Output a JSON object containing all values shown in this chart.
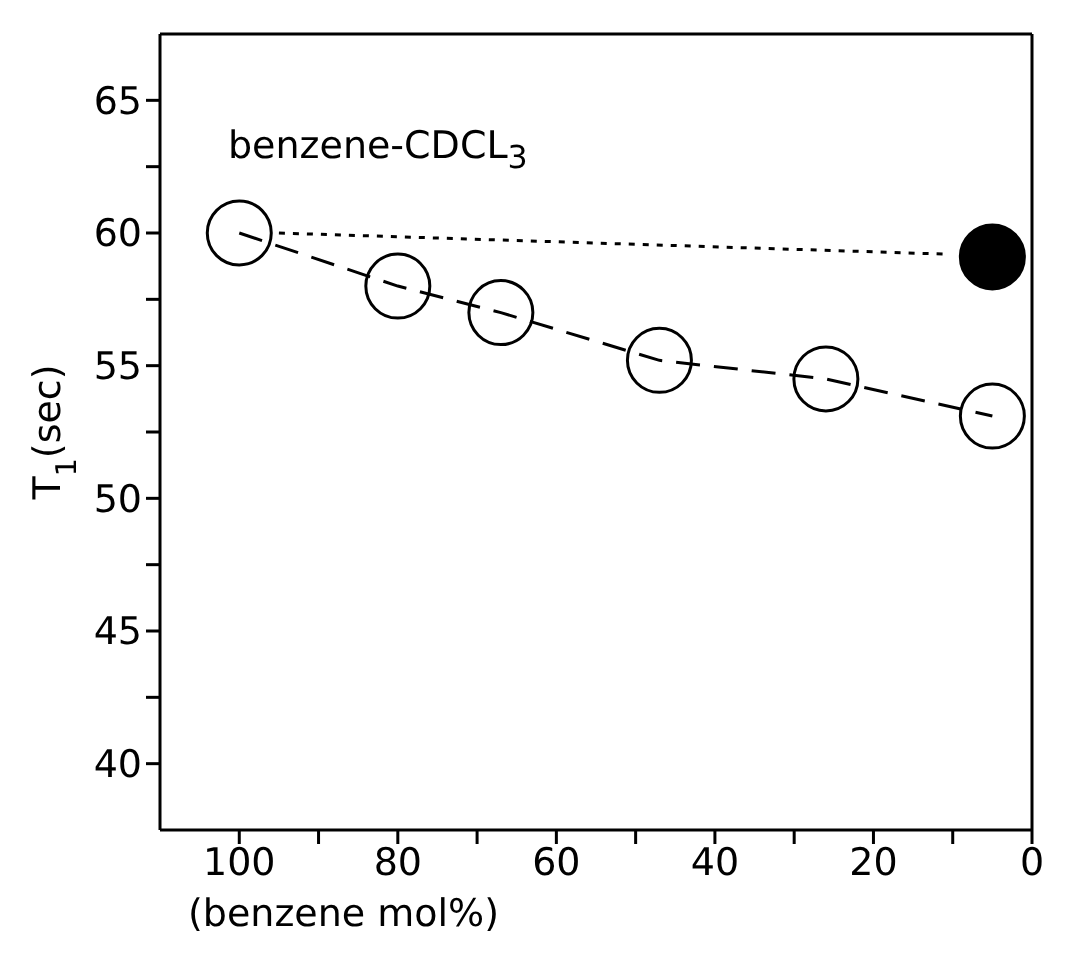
{
  "chart_data": {
    "type": "scatter",
    "xlabel": "(benzene mol%)",
    "ylabel": "T$_{1}$(sec)",
    "annotations": [
      "benzene-CDCL$_{3}$"
    ],
    "xlim": [
      110,
      0
    ],
    "xticks": [
      100,
      {
        "value": 90,
        "label": null
      },
      80,
      {
        "value": 70,
        "label": null
      },
      60,
      {
        "value": 50,
        "label": null
      },
      40,
      {
        "value": 30,
        "label": null
      },
      20,
      {
        "value": 10,
        "label": null
      },
      0
    ],
    "ylim": [
      37.5,
      67.5
    ],
    "yticks": [
      40,
      {
        "value": 42.5,
        "label": null
      },
      45,
      {
        "value": 47.5,
        "label": null
      },
      50,
      {
        "value": 52.5,
        "label": null
      },
      55,
      {
        "value": 57.5,
        "label": null
      },
      60,
      {
        "value": 62.5,
        "label": null
      },
      65
    ],
    "grid": false,
    "legend": false,
    "series": [
      {
        "type": "line",
        "color": "#000000",
        "marker": "circle",
        "line_style": "dashed",
        "x": [
          100,
          80,
          67,
          47,
          26,
          5
        ],
        "values": [
          60,
          58,
          57,
          55.2,
          54.5,
          53.1
        ]
      },
      {
        "type": "line",
        "color": "#000000",
        "marker": "none",
        "line_style": "dotted",
        "x": [
          95,
          10.5
        ],
        "values": [
          60,
          59.2
        ]
      },
      {
        "color": "#000000",
        "marker": "circle",
        "x": [
          5
        ],
        "values": [
          59.1
        ]
      }
    ]
  }
}
